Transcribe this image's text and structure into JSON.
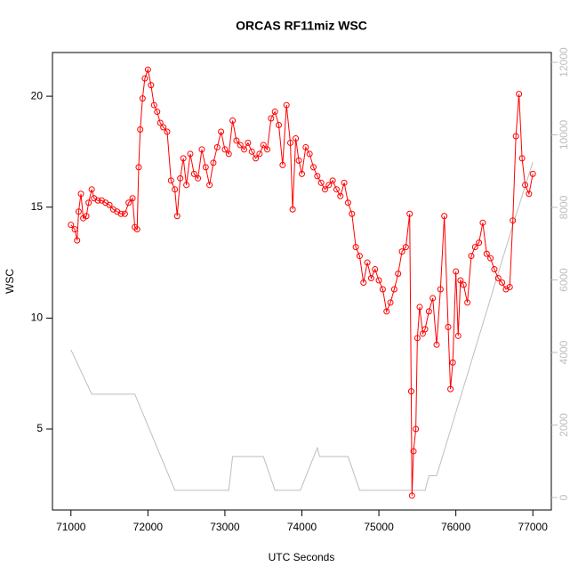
{
  "chart_data": {
    "type": "line",
    "title": "ORCAS RF11miz WSC",
    "xlabel": "UTC Seconds",
    "ylabel": "WSC",
    "xlim": [
      70760,
      77240
    ],
    "xticks": [
      71000,
      72000,
      73000,
      74000,
      75000,
      76000,
      77000
    ],
    "ylim": [
      1.35,
      21.97
    ],
    "yticks": [
      5,
      10,
      15,
      20
    ],
    "y2lim": [
      -344,
      12270
    ],
    "y2ticks": [
      0,
      2000,
      4000,
      6000,
      8000,
      10000,
      12000
    ],
    "series": [
      {
        "color": "#ff0000",
        "markers": true,
        "x": [
          71000,
          71050,
          71080,
          71100,
          71130,
          71160,
          71200,
          71230,
          71270,
          71300,
          71350,
          71400,
          71450,
          71500,
          71550,
          71600,
          71650,
          71700,
          71750,
          71800,
          71830,
          71860,
          71880,
          71900,
          71930,
          71960,
          72000,
          72040,
          72080,
          72120,
          72160,
          72200,
          72250,
          72300,
          72350,
          72380,
          72420,
          72460,
          72500,
          72550,
          72600,
          72650,
          72700,
          72750,
          72800,
          72850,
          72900,
          72950,
          73000,
          73050,
          73100,
          73150,
          73200,
          73250,
          73300,
          73350,
          73400,
          73450,
          73500,
          73550,
          73600,
          73650,
          73700,
          73750,
          73800,
          73850,
          73880,
          73920,
          73960,
          74000,
          74050,
          74100,
          74150,
          74200,
          74250,
          74300,
          74350,
          74400,
          74450,
          74500,
          74550,
          74600,
          74650,
          74700,
          74750,
          74800,
          74850,
          74900,
          74950,
          75000,
          75050,
          75100,
          75150,
          75200,
          75250,
          75300,
          75350,
          75400,
          75420,
          75430,
          75450,
          75480,
          75500,
          75530,
          75570,
          75600,
          75650,
          75700,
          75750,
          75800,
          75850,
          75900,
          75930,
          75960,
          76000,
          76030,
          76060,
          76100,
          76150,
          76200,
          76250,
          76300,
          76350,
          76400,
          76450,
          76500,
          76550,
          76600,
          76650,
          76700,
          76740,
          76780,
          76820,
          76860,
          76900,
          76950,
          77000
        ],
        "values": [
          14.2,
          14.0,
          13.5,
          14.8,
          15.6,
          14.5,
          14.6,
          15.2,
          15.8,
          15.4,
          15.3,
          15.3,
          15.2,
          15.1,
          14.9,
          14.8,
          14.7,
          14.7,
          15.2,
          15.4,
          14.1,
          14.0,
          16.8,
          18.5,
          19.9,
          20.8,
          21.2,
          20.5,
          19.6,
          19.3,
          18.8,
          18.6,
          18.4,
          16.2,
          15.8,
          14.6,
          16.3,
          17.2,
          16.0,
          17.4,
          16.5,
          16.3,
          17.6,
          16.8,
          16.0,
          17.0,
          17.7,
          18.4,
          17.6,
          17.4,
          18.9,
          18.0,
          17.8,
          17.6,
          17.9,
          17.5,
          17.2,
          17.4,
          17.8,
          17.6,
          19.0,
          19.3,
          18.7,
          16.9,
          19.6,
          17.9,
          14.9,
          18.1,
          17.1,
          16.5,
          17.7,
          17.4,
          16.8,
          16.4,
          16.1,
          15.8,
          16.0,
          16.2,
          15.8,
          15.5,
          16.1,
          15.2,
          14.7,
          13.2,
          12.8,
          11.6,
          12.5,
          11.8,
          12.2,
          11.7,
          11.3,
          10.3,
          10.7,
          11.3,
          12.0,
          13.0,
          13.2,
          14.7,
          6.7,
          2.0,
          4.0,
          5.0,
          9.1,
          10.5,
          9.3,
          9.5,
          10.3,
          10.9,
          8.8,
          11.3,
          14.6,
          9.6,
          6.8,
          8.0,
          12.1,
          9.2,
          11.7,
          11.5,
          10.7,
          12.8,
          13.2,
          13.4,
          14.3,
          12.9,
          12.7,
          12.2,
          11.8,
          11.6,
          11.3,
          11.4,
          14.4,
          18.2,
          20.1,
          17.2,
          16.0,
          15.6,
          16.5
        ]
      },
      {
        "color": "#bebebe",
        "axis": "y2",
        "x": [
          71000,
          71270,
          71830,
          72350,
          73050,
          73100,
          73500,
          73650,
          73980,
          74200,
          74230,
          74600,
          74750,
          75600,
          75650,
          75750,
          76750,
          77000
        ],
        "values": [
          4074,
          2850,
          2850,
          200,
          200,
          1130,
          1130,
          200,
          200,
          1370,
          1130,
          1130,
          200,
          200,
          600,
          600,
          7580,
          9250
        ]
      }
    ]
  }
}
